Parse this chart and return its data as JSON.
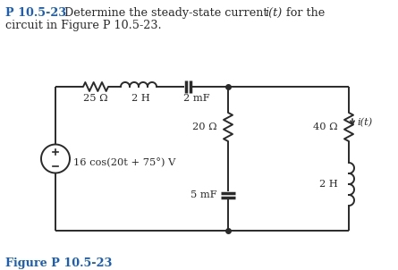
{
  "figure_label": "Figure P 10.5-23",
  "bg_color": "#ffffff",
  "line_color": "#2a2a2a",
  "label_color": "#1a5eb8",
  "text_color": "#2a2a2a",
  "resistor1_label": "25 Ω",
  "inductor1_label": "2 H",
  "capacitor1_label": "2 mF",
  "resistor2_label": "20 Ω",
  "resistor3_label": "40 Ω",
  "capacitor2_label": "5 mF",
  "inductor2_label": "2 H",
  "source_label": "16 cos(20t + 75°) V",
  "current_label": "i(t)",
  "title_p": "P 10.5-23",
  "title_rest": " Determine the steady-state current ",
  "title_it": "i(t)",
  "title_end": " for the",
  "title_line2": "circuit in Figure P 10.5-23."
}
